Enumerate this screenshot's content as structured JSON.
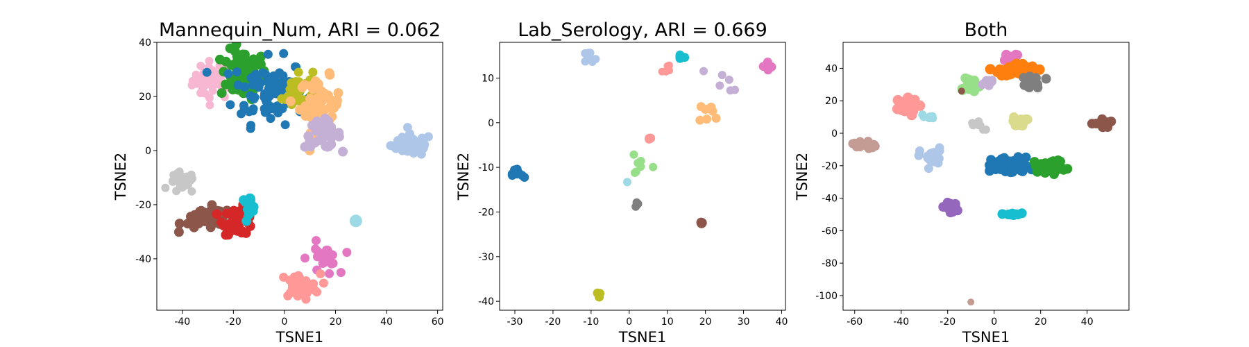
{
  "chart_data": [
    {
      "type": "scatter",
      "title": "Mannequin_Num, ARI = 0.062",
      "xlabel": "TSNE1",
      "ylabel": "TSNE2",
      "xlim": [
        -50,
        62
      ],
      "ylim": [
        -59,
        40
      ],
      "xticks": [
        -40,
        -20,
        0,
        20,
        40,
        60
      ],
      "yticks": [
        -40,
        -20,
        0,
        20,
        40
      ],
      "grid": false,
      "clusters": [
        {
          "color": "#f7b6d2",
          "cx": -28,
          "cy": 26,
          "sx": 4,
          "sy": 3.5,
          "n": 45,
          "r": 6
        },
        {
          "color": "#2ca02c",
          "cx": -16,
          "cy": 28,
          "sx": 4.5,
          "sy": 4.5,
          "n": 70,
          "r": 7
        },
        {
          "color": "#1f77b4",
          "cx": -6,
          "cy": 22,
          "sx": 7,
          "sy": 6,
          "n": 90,
          "r": 6.5
        },
        {
          "color": "#bcbd22",
          "cx": 5,
          "cy": 22,
          "sx": 3,
          "sy": 4,
          "n": 35,
          "r": 6.5
        },
        {
          "color": "#ffbb78",
          "cx": 14,
          "cy": 17,
          "sx": 4,
          "sy": 5,
          "n": 55,
          "r": 7
        },
        {
          "color": "#c5b0d5",
          "cx": 15,
          "cy": 6,
          "sx": 3.5,
          "sy": 2.5,
          "n": 40,
          "r": 7
        },
        {
          "color": "#aec7e8",
          "cx": 50,
          "cy": 2,
          "sx": 4,
          "sy": 2,
          "n": 55,
          "r": 6.5
        },
        {
          "color": "#c7c7c7",
          "cx": -40,
          "cy": -12,
          "sx": 2.5,
          "sy": 2,
          "n": 30,
          "r": 6
        },
        {
          "color": "#8c564b",
          "cx": -30,
          "cy": -25,
          "sx": 5,
          "sy": 2,
          "n": 45,
          "r": 7
        },
        {
          "color": "#d62728",
          "cx": -18,
          "cy": -26,
          "sx": 3,
          "sy": 2.5,
          "n": 45,
          "r": 7
        },
        {
          "color": "#17becf",
          "cx": -14,
          "cy": -20,
          "sx": 1.5,
          "sy": 1.5,
          "n": 14,
          "r": 7
        },
        {
          "color": "#9edae5",
          "cx": 28,
          "cy": -26,
          "sx": 0,
          "sy": 0,
          "n": 1,
          "r": 9
        },
        {
          "color": "#e377c2",
          "cx": 15,
          "cy": -40,
          "sx": 3,
          "sy": 3,
          "n": 22,
          "r": 6.5
        },
        {
          "color": "#ff9896",
          "cx": 6,
          "cy": -50,
          "sx": 4,
          "sy": 2.2,
          "n": 35,
          "r": 6.5
        }
      ]
    },
    {
      "type": "scatter",
      "title": "Lab_Serology, ARI = 0.669",
      "xlabel": "TSNE1",
      "ylabel": "TSNE2",
      "xlim": [
        -34,
        41
      ],
      "ylim": [
        -42,
        18
      ],
      "xticks": [
        -30,
        -20,
        -10,
        0,
        10,
        20,
        30,
        40
      ],
      "yticks": [
        -40,
        -30,
        -20,
        -10,
        0,
        10
      ],
      "grid": false,
      "clusters": [
        {
          "color": "#aec7e8",
          "cx": -11,
          "cy": 14,
          "sx": 1.5,
          "sy": 1,
          "n": 10,
          "r": 6
        },
        {
          "color": "#1f77b4",
          "cx": -29,
          "cy": -11.5,
          "sx": 0.8,
          "sy": 0.8,
          "n": 10,
          "r": 6.5
        },
        {
          "color": "#bcbd22",
          "cx": -8,
          "cy": -38.5,
          "sx": 0.2,
          "sy": 0.3,
          "n": 4,
          "r": 6.5
        },
        {
          "color": "#ff9896",
          "cx": 10,
          "cy": 11.5,
          "sx": 1.5,
          "sy": 1.2,
          "n": 6,
          "r": 5.5
        },
        {
          "color": "#17becf",
          "cx": 13.5,
          "cy": 14.8,
          "sx": 0.6,
          "sy": 0.4,
          "n": 6,
          "r": 6.5
        },
        {
          "color": "#c5b0d5",
          "cx": 25,
          "cy": 9,
          "sx": 5,
          "sy": 3,
          "n": 6,
          "r": 6
        },
        {
          "color": "#e377c2",
          "cx": 36,
          "cy": 12.5,
          "sx": 0.8,
          "sy": 0.8,
          "n": 6,
          "r": 6.5
        },
        {
          "color": "#ffbb78",
          "cx": 22,
          "cy": 2,
          "sx": 2,
          "sy": 1.5,
          "n": 8,
          "r": 6.5
        },
        {
          "color": "#98df8a",
          "cx": 2,
          "cy": -9,
          "sx": 2,
          "sy": 1.5,
          "n": 7,
          "r": 6
        },
        {
          "color": "#ff9896",
          "cx": 5.5,
          "cy": -3.8,
          "sx": 0.4,
          "sy": 0.4,
          "n": 3,
          "r": 6.5
        },
        {
          "color": "#9edae5",
          "cx": -0.5,
          "cy": -13.3,
          "sx": 0,
          "sy": 0,
          "n": 1,
          "r": 6
        },
        {
          "color": "#7f7f7f",
          "cx": 2,
          "cy": -18,
          "sx": 0.2,
          "sy": 0.5,
          "n": 3,
          "r": 6
        },
        {
          "color": "#8c564b",
          "cx": 19,
          "cy": -22.3,
          "sx": 0.2,
          "sy": 0.2,
          "n": 3,
          "r": 7
        }
      ]
    },
    {
      "type": "scatter",
      "title": "Both",
      "xlabel": "TSNE1",
      "ylabel": "TSNE2",
      "xlim": [
        -65,
        58
      ],
      "ylim": [
        -109,
        56
      ],
      "xticks": [
        -60,
        -40,
        -20,
        0,
        20,
        40
      ],
      "yticks": [
        -100,
        -80,
        -60,
        -40,
        -20,
        0,
        20,
        40
      ],
      "grid": false,
      "clusters": [
        {
          "color": "#e377c2",
          "cx": 7,
          "cy": 47,
          "sx": 2,
          "sy": 1.5,
          "n": 14,
          "r": 7
        },
        {
          "color": "#ff7f0e",
          "cx": 10,
          "cy": 39,
          "sx": 4,
          "sy": 2,
          "n": 40,
          "r": 7.5
        },
        {
          "color": "#7f7f7f",
          "cx": 18,
          "cy": 32,
          "sx": 2,
          "sy": 2,
          "n": 15,
          "r": 7
        },
        {
          "color": "#98df8a",
          "cx": -11,
          "cy": 30,
          "sx": 2.5,
          "sy": 3,
          "n": 15,
          "r": 7
        },
        {
          "color": "#c5b0d5",
          "cx": -3,
          "cy": 31,
          "sx": 2,
          "sy": 1.5,
          "n": 10,
          "r": 6.5
        },
        {
          "color": "#8c564b",
          "cx": -14,
          "cy": 26,
          "sx": 0,
          "sy": 0,
          "n": 1,
          "r": 5
        },
        {
          "color": "#ff9896",
          "cx": -39,
          "cy": 16,
          "sx": 3,
          "sy": 2.5,
          "n": 25,
          "r": 7.5
        },
        {
          "color": "#9edae5",
          "cx": -29,
          "cy": 10,
          "sx": 1.5,
          "sy": 1,
          "n": 6,
          "r": 6
        },
        {
          "color": "#c7c7c7",
          "cx": -8,
          "cy": 5,
          "sx": 3,
          "sy": 1.5,
          "n": 8,
          "r": 6
        },
        {
          "color": "#dbdb8d",
          "cx": 11,
          "cy": 7,
          "sx": 1.5,
          "sy": 1.5,
          "n": 12,
          "r": 7
        },
        {
          "color": "#8c564b",
          "cx": 47,
          "cy": 6,
          "sx": 2.5,
          "sy": 1.5,
          "n": 10,
          "r": 7
        },
        {
          "color": "#c49c94",
          "cx": -56,
          "cy": -7,
          "sx": 2.5,
          "sy": 1.5,
          "n": 20,
          "r": 6.5
        },
        {
          "color": "#aec7e8",
          "cx": -27,
          "cy": -15,
          "sx": 2.5,
          "sy": 3,
          "n": 25,
          "r": 6.5
        },
        {
          "color": "#1f77b4",
          "cx": 7,
          "cy": -20,
          "sx": 4,
          "sy": 2.5,
          "n": 70,
          "r": 7
        },
        {
          "color": "#2ca02c",
          "cx": 24,
          "cy": -20,
          "sx": 3.5,
          "sy": 2,
          "n": 30,
          "r": 7
        },
        {
          "color": "#9467bd",
          "cx": -19,
          "cy": -46,
          "sx": 1.5,
          "sy": 1.5,
          "n": 20,
          "r": 7
        },
        {
          "color": "#17becf",
          "cx": 8,
          "cy": -50,
          "sx": 1.5,
          "sy": 0.6,
          "n": 12,
          "r": 7
        },
        {
          "color": "#c49c94",
          "cx": -10,
          "cy": -104,
          "sx": 0,
          "sy": 0,
          "n": 1,
          "r": 5
        }
      ]
    }
  ]
}
